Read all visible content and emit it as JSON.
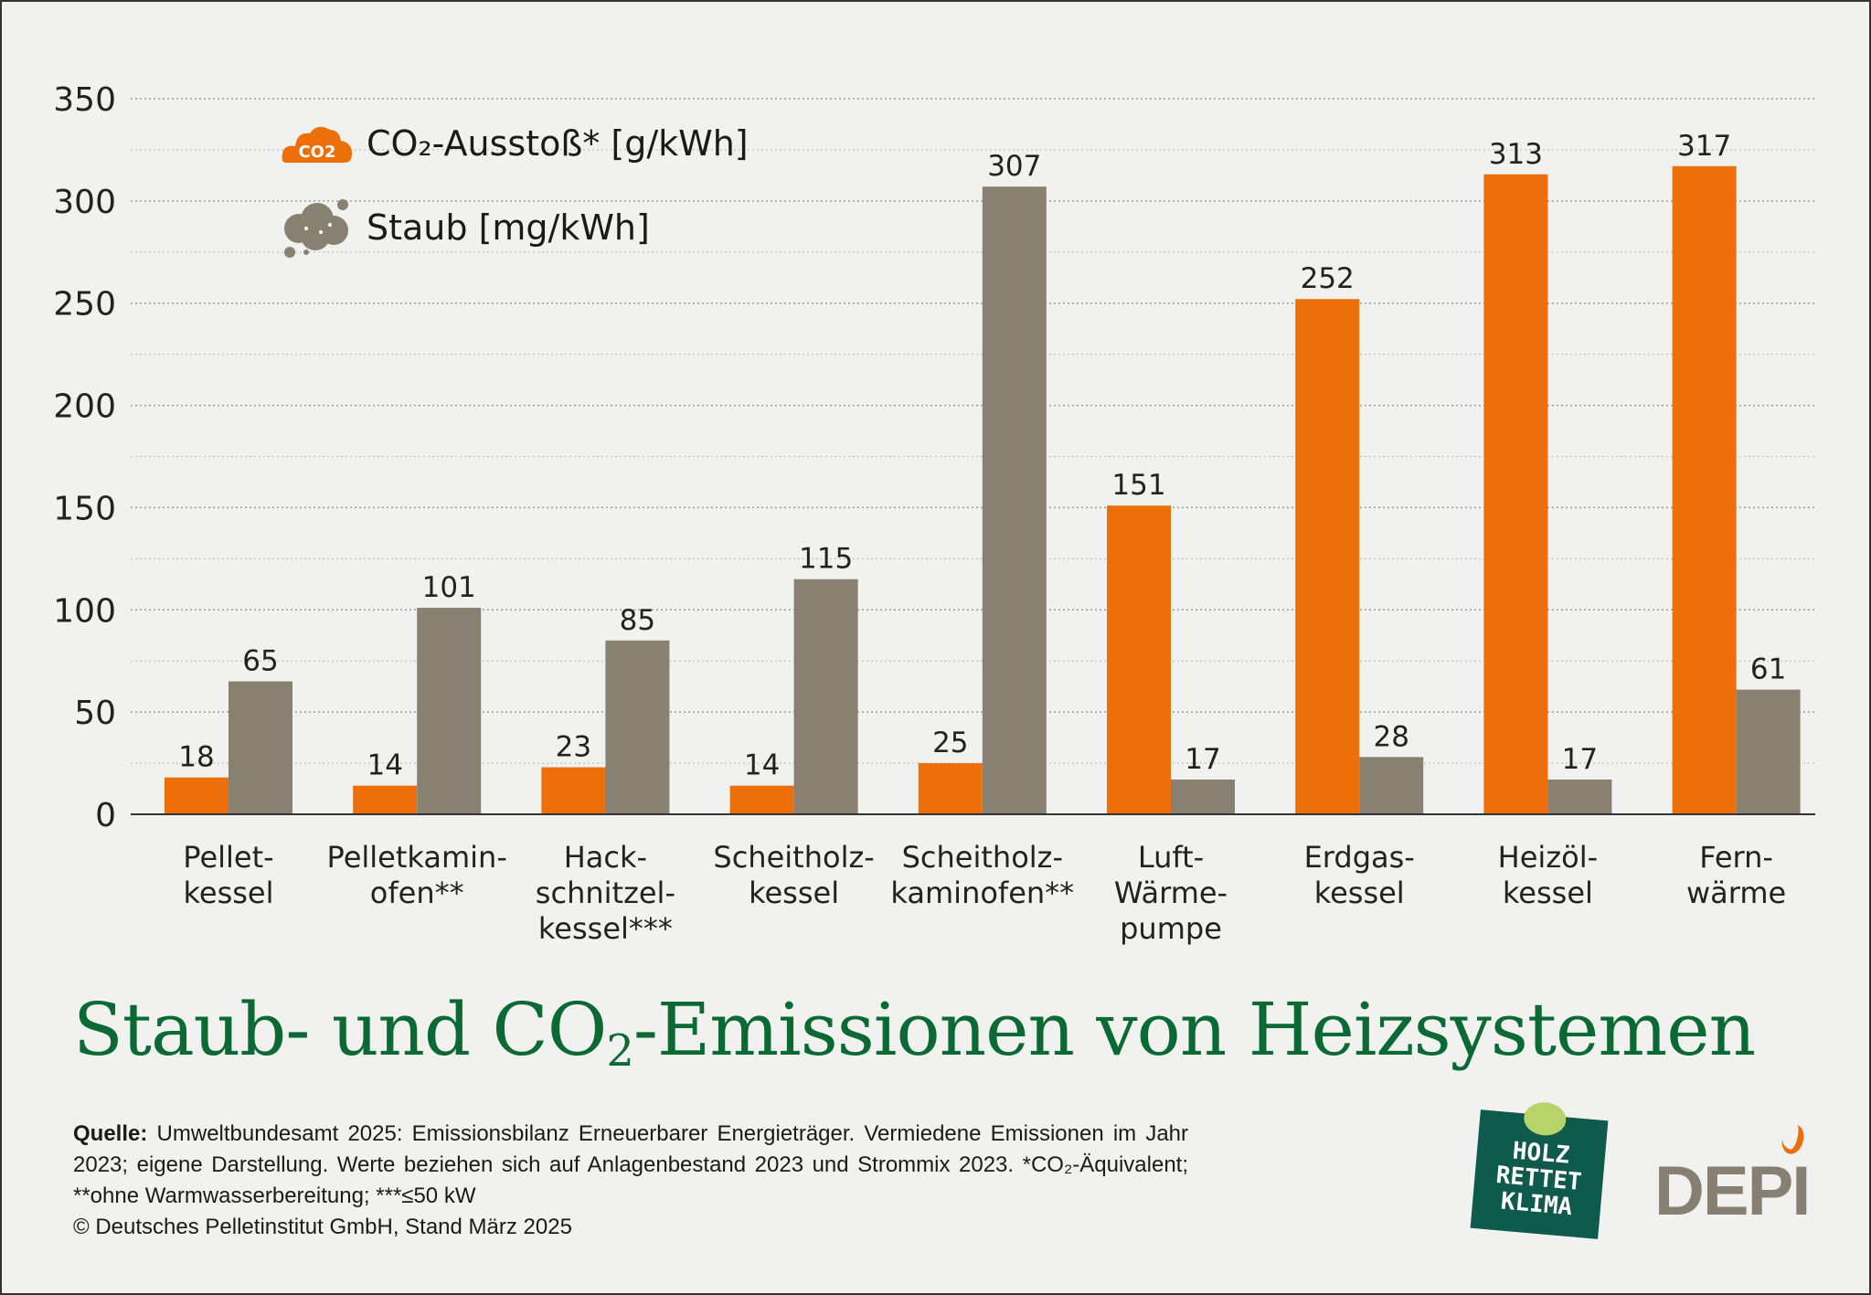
{
  "chart_data": {
    "type": "bar",
    "title": "Staub- und CO2-Emissionen von Heizsystemen",
    "categories": [
      [
        "Pellet-",
        "kessel"
      ],
      [
        "Pelletkamin-",
        "ofen**"
      ],
      [
        "Hack-",
        "schnitzel-",
        "kessel***"
      ],
      [
        "Scheitholz-",
        "kessel"
      ],
      [
        "Scheitholz-",
        "kaminofen**"
      ],
      [
        "Luft-",
        "Wärme-",
        "pumpe"
      ],
      [
        "Erdgas-",
        "kessel"
      ],
      [
        "Heizöl-",
        "kessel"
      ],
      [
        "Fern-",
        "wärme"
      ]
    ],
    "series": [
      {
        "name": "CO₂-Ausstoß* [g/kWh]",
        "color": "#ec6f0a",
        "values": [
          18,
          14,
          23,
          14,
          25,
          151,
          252,
          313,
          317
        ]
      },
      {
        "name": "Staub [mg/kWh]",
        "color": "#888070",
        "values": [
          65,
          101,
          85,
          115,
          307,
          17,
          28,
          17,
          61
        ]
      }
    ],
    "ylim": [
      0,
      350
    ],
    "yticks": [
      0,
      50,
      100,
      150,
      200,
      250,
      300,
      350
    ],
    "grid": true,
    "legend": "top-left"
  },
  "title": {
    "pre": "Staub- und CO",
    "sub": "2",
    "post": "-Emissionen von Heizsystemen"
  },
  "footer": {
    "label": "Quelle:",
    "text": "Umweltbundesamt 2025: Emissionsbilanz Erneuerbarer Energieträger. Vermiedene Emissionen im Jahr 2023; eigene Darstellung. Werte beziehen sich auf Anlagenbestand 2023 und Strommix 2023. *CO₂-Äquivalent; **ohne Warmwasserbereitung; ***≤50 kW",
    "copyright": "© Deutsches Pelletinstitut GmbH, Stand März 2025"
  },
  "logos": {
    "holz": "HOLZ RETTET KLIMA",
    "depi": "DEPI",
    "co2_icon": "CO2"
  }
}
